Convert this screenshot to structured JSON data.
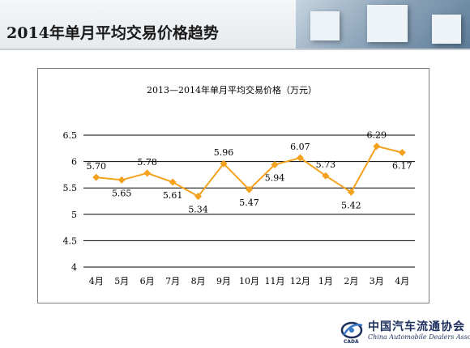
{
  "slide": {
    "title": "2014年单月平均交易价格趋势"
  },
  "colors": {
    "series": "#f4a11d",
    "grid": "#000000",
    "text": "#000000"
  },
  "chart_data": {
    "type": "line",
    "title": "2013—2014年单月平均交易价格（万元）",
    "xlabel": "",
    "ylabel": "",
    "categories": [
      "4月",
      "5月",
      "6月",
      "7月",
      "8月",
      "9月",
      "10月",
      "11月",
      "12月",
      "1月",
      "2月",
      "3月",
      "4月"
    ],
    "series": [
      {
        "values": [
          5.7,
          5.65,
          5.78,
          5.61,
          5.34,
          5.96,
          5.47,
          5.94,
          6.07,
          5.73,
          5.42,
          6.29,
          6.17
        ],
        "labels": [
          "5.70",
          "5.65",
          "5.78",
          "5.61",
          "5.34",
          "5.96",
          "5.47",
          "5.94",
          "6.07",
          "5.73",
          "5.42",
          "6.29",
          "6.17"
        ],
        "label_side": [
          "above",
          "below",
          "above",
          "below",
          "below",
          "above",
          "below",
          "below",
          "above",
          "above",
          "below",
          "above",
          "below"
        ]
      }
    ],
    "ylim": [
      4,
      6.5
    ],
    "yticks": [
      "4",
      "4.5",
      "5",
      "5.5",
      "6",
      "6.5"
    ],
    "grid": true,
    "legend": "none"
  },
  "footer": {
    "org_cn": "中国汽车流通协会",
    "org_en": "China Automobile Dealers Association",
    "org_abbr": "CADA"
  }
}
